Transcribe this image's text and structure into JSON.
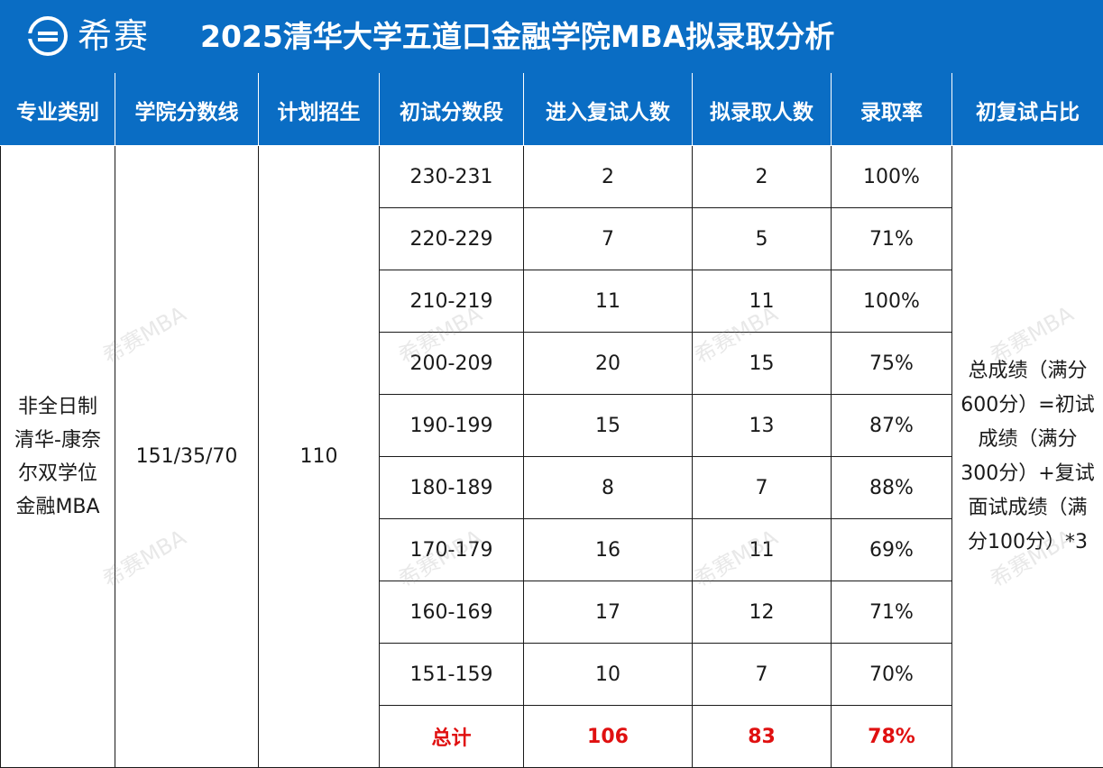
{
  "header": {
    "logo_text": "希赛",
    "title": "2025清华大学五道口金融学院MBA拟录取分析"
  },
  "table": {
    "columns": [
      "专业类别",
      "学院分数线",
      "计划招生",
      "初试分数段",
      "进入复试人数",
      "拟录取人数",
      "录取率",
      "初复试占比"
    ],
    "category_lines": [
      "非全日制",
      "清华-康奈",
      "尔双学位",
      "金融MBA"
    ],
    "score_line": "151/35/70",
    "plan": "110",
    "rows": [
      {
        "range": "230-231",
        "interview": "2",
        "admitted": "2",
        "rate": "100%"
      },
      {
        "range": "220-229",
        "interview": "7",
        "admitted": "5",
        "rate": "71%"
      },
      {
        "range": "210-219",
        "interview": "11",
        "admitted": "11",
        "rate": "100%"
      },
      {
        "range": "200-209",
        "interview": "20",
        "admitted": "15",
        "rate": "75%"
      },
      {
        "range": "190-199",
        "interview": "15",
        "admitted": "13",
        "rate": "87%"
      },
      {
        "range": "180-189",
        "interview": "8",
        "admitted": "7",
        "rate": "88%"
      },
      {
        "range": "170-179",
        "interview": "16",
        "admitted": "11",
        "rate": "69%"
      },
      {
        "range": "160-169",
        "interview": "17",
        "admitted": "12",
        "rate": "71%"
      },
      {
        "range": "151-159",
        "interview": "10",
        "admitted": "7",
        "rate": "70%"
      }
    ],
    "total": {
      "label": "总计",
      "interview": "106",
      "admitted": "83",
      "rate": "78%"
    },
    "note_lines": [
      "总成绩（满分",
      "600分）=初试",
      "成绩（满分",
      "300分）+复试",
      "面试成绩（满",
      "分100分）*3"
    ]
  },
  "watermark": "希赛MBA",
  "colors": {
    "header_bg": "#0a6dc4",
    "total_text": "#e01010"
  }
}
